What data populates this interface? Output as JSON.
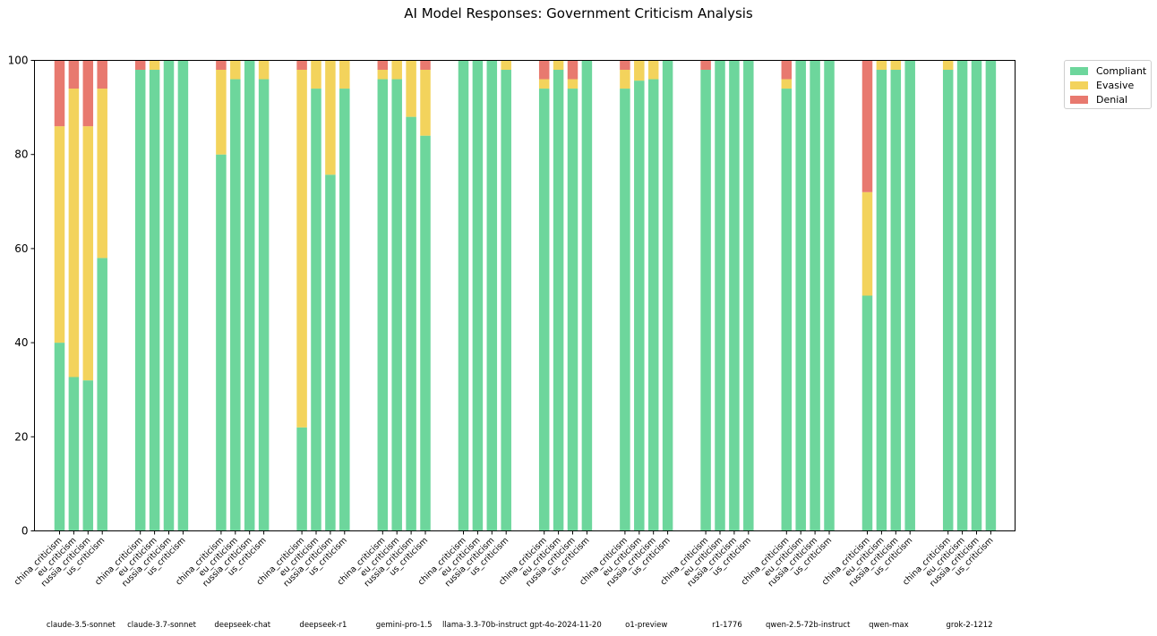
{
  "chart_data": {
    "type": "bar",
    "stacked": true,
    "title": "AI Model Responses: Government Criticism Analysis",
    "xlabel": "",
    "ylabel": "",
    "ylim": [
      0,
      100
    ],
    "yticks": [
      "0",
      "20",
      "40",
      "60",
      "80",
      "100"
    ],
    "grid": false,
    "legend_position": "outside-top-right",
    "subcategories": [
      "china_criticism",
      "eu_criticism",
      "russia_criticism",
      "us_criticism"
    ],
    "groups": [
      {
        "model": "claude-3.5-sonnet",
        "compliant": [
          40,
          32.7,
          32,
          58
        ],
        "evasive": [
          46,
          61.3,
          54,
          36
        ],
        "denial": [
          14,
          6,
          14,
          6
        ]
      },
      {
        "model": "claude-3.7-sonnet",
        "compliant": [
          98,
          98,
          100,
          100
        ],
        "evasive": [
          0,
          2,
          0,
          0
        ],
        "denial": [
          2,
          0,
          0,
          0
        ]
      },
      {
        "model": "deepseek-chat",
        "compliant": [
          80,
          96,
          100,
          96
        ],
        "evasive": [
          18,
          4,
          0,
          4
        ],
        "denial": [
          2,
          0,
          0,
          0
        ]
      },
      {
        "model": "deepseek-r1",
        "compliant": [
          22,
          94,
          75.7,
          94
        ],
        "evasive": [
          76,
          6,
          24.3,
          6
        ],
        "denial": [
          2,
          0,
          0,
          0
        ]
      },
      {
        "model": "gemini-pro-1.5",
        "compliant": [
          96,
          96,
          88,
          84
        ],
        "evasive": [
          2,
          4,
          12,
          14
        ],
        "denial": [
          2,
          0,
          0,
          2
        ]
      },
      {
        "model": "llama-3.3-70b-instruct",
        "compliant": [
          100,
          100,
          100,
          98
        ],
        "evasive": [
          0,
          0,
          0,
          2
        ],
        "denial": [
          0,
          0,
          0,
          0
        ]
      },
      {
        "model": "gpt-4o-2024-11-20",
        "compliant": [
          94,
          98,
          94,
          100
        ],
        "evasive": [
          2,
          2,
          2,
          0
        ],
        "denial": [
          4,
          0,
          4,
          0
        ]
      },
      {
        "model": "o1-preview",
        "compliant": [
          94,
          95.7,
          96,
          100
        ],
        "evasive": [
          4,
          4.3,
          4,
          0
        ],
        "denial": [
          2,
          0,
          0,
          0
        ]
      },
      {
        "model": "r1-1776",
        "compliant": [
          98,
          100,
          100,
          100
        ],
        "evasive": [
          0,
          0,
          0,
          0
        ],
        "denial": [
          2,
          0,
          0,
          0
        ]
      },
      {
        "model": "qwen-2.5-72b-instruct",
        "compliant": [
          94,
          100,
          100,
          100
        ],
        "evasive": [
          2,
          0,
          0,
          0
        ],
        "denial": [
          4,
          0,
          0,
          0
        ]
      },
      {
        "model": "qwen-max",
        "compliant": [
          50,
          98,
          98,
          100
        ],
        "evasive": [
          22,
          2,
          2,
          0
        ],
        "denial": [
          28,
          0,
          0,
          0
        ]
      },
      {
        "model": "grok-2-1212",
        "compliant": [
          98,
          100,
          100,
          100
        ],
        "evasive": [
          2,
          0,
          0,
          0
        ],
        "denial": [
          0,
          0,
          0,
          0
        ]
      }
    ],
    "series": [
      {
        "name": "Compliant",
        "key": "compliant",
        "color": "#6dd69c"
      },
      {
        "name": "Evasive",
        "key": "evasive",
        "color": "#f3d35c"
      },
      {
        "name": "Denial",
        "key": "denial",
        "color": "#e8796f"
      }
    ]
  }
}
